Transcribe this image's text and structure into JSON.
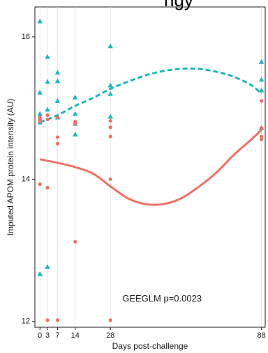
{
  "top_clipped_text": "ngy",
  "chart_data": {
    "type": "scatter",
    "xlabel": "Days post-challenge",
    "ylabel": "Imputed APOM protein intensity (AU)",
    "x_ticks": [
      0,
      3,
      7,
      14,
      28,
      88
    ],
    "x_tick_labels": [
      "0",
      "3",
      "7",
      "14",
      "28",
      "88"
    ],
    "y_ticks": [
      12,
      14,
      16
    ],
    "y_tick_labels": [
      "12",
      "14",
      "16"
    ],
    "xlim": [
      -2,
      89.5
    ],
    "ylim": [
      11.92,
      16.42
    ],
    "grid": "vertical lines at x ticks",
    "annotation": "GEEGLM p=0.0023",
    "colors": {
      "salmon": "#f07065",
      "teal": "#1fb6c0"
    },
    "series": [
      {
        "marker": "triangle",
        "color": "#1fb6c0",
        "points": [
          [
            0,
            16.22
          ],
          [
            0,
            15.22
          ],
          [
            0,
            14.92
          ],
          [
            0,
            14.8
          ],
          [
            0,
            12.67
          ],
          [
            3,
            15.72
          ],
          [
            3,
            15.37
          ],
          [
            3,
            14.98
          ],
          [
            3,
            12.77
          ],
          [
            7,
            15.5
          ],
          [
            7,
            15.38
          ],
          [
            7,
            15.1
          ],
          [
            7,
            14.87
          ],
          [
            14,
            15.15
          ],
          [
            14,
            14.92
          ],
          [
            14,
            14.78
          ],
          [
            14,
            14.63
          ],
          [
            28,
            15.87
          ],
          [
            28,
            15.32
          ],
          [
            28,
            15.2
          ],
          [
            28,
            14.88
          ],
          [
            88,
            15.65
          ],
          [
            88,
            15.4
          ],
          [
            88,
            15.25
          ],
          [
            88,
            14.72
          ]
        ],
        "trend": {
          "style": "dashed",
          "x": [
            0,
            7,
            14,
            21,
            28,
            35,
            42,
            49,
            56,
            63,
            70,
            77,
            84,
            88
          ],
          "y": [
            14.8,
            14.9,
            15.03,
            15.14,
            15.27,
            15.37,
            15.46,
            15.52,
            15.55,
            15.55,
            15.51,
            15.44,
            15.32,
            15.2
          ]
        }
      },
      {
        "marker": "circle",
        "color": "#f07065",
        "points": [
          [
            0,
            14.87
          ],
          [
            0,
            14.84
          ],
          [
            0,
            14.81
          ],
          [
            0,
            13.93
          ],
          [
            3,
            14.9
          ],
          [
            3,
            14.84
          ],
          [
            3,
            13.88
          ],
          [
            3,
            12.02
          ],
          [
            7,
            14.87
          ],
          [
            7,
            14.59
          ],
          [
            7,
            14.5
          ],
          [
            7,
            12.02
          ],
          [
            14,
            14.81
          ],
          [
            14,
            14.78
          ],
          [
            14,
            13.12
          ],
          [
            28,
            14.82
          ],
          [
            28,
            14.73
          ],
          [
            28,
            14.6
          ],
          [
            28,
            14.0
          ],
          [
            28,
            12.02
          ],
          [
            88,
            15.1
          ],
          [
            88,
            14.72
          ],
          [
            88,
            14.6
          ],
          [
            88,
            14.56
          ]
        ],
        "trend": {
          "style": "solid",
          "x": [
            0,
            7,
            14,
            21,
            28,
            35,
            42,
            49,
            56,
            63,
            70,
            77,
            84,
            88
          ],
          "y": [
            14.28,
            14.23,
            14.17,
            14.08,
            13.9,
            13.73,
            13.65,
            13.65,
            13.73,
            13.89,
            14.09,
            14.34,
            14.56,
            14.69
          ]
        }
      }
    ]
  }
}
